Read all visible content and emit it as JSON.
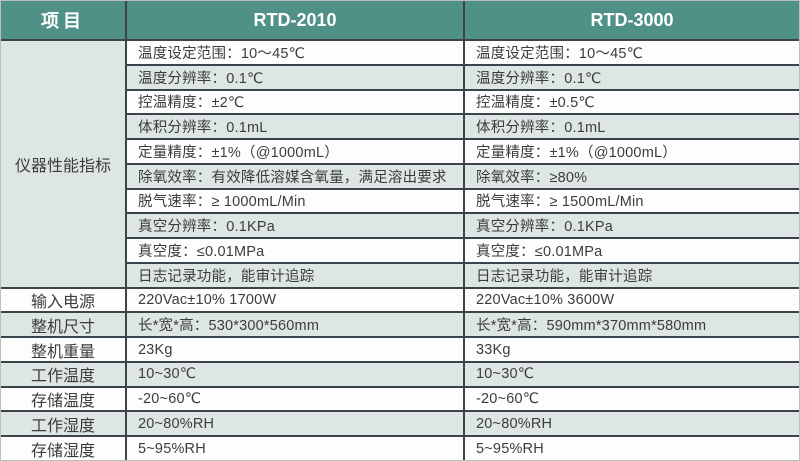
{
  "table": {
    "header": {
      "item": "项目",
      "product1": "RTD-2010",
      "product2": "RTD-3000"
    },
    "performance_label": "仪器性能指标",
    "performance_rows": [
      {
        "rtd2010": "温度设定范围：10～45℃",
        "rtd3000": "温度设定范围：10～45℃"
      },
      {
        "rtd2010": "温度分辨率：0.1℃",
        "rtd3000": "温度分辨率：0.1℃"
      },
      {
        "rtd2010": "控温精度：±2℃",
        "rtd3000": "控温精度：±0.5℃"
      },
      {
        "rtd2010": "体积分辨率：0.1mL",
        "rtd3000": "体积分辨率：0.1mL"
      },
      {
        "rtd2010": "定量精度：±1%（@1000mL）",
        "rtd3000": "定量精度：±1%（@1000mL）"
      },
      {
        "rtd2010": "除氧效率：有效降低溶媒含氧量，满足溶出要求",
        "rtd3000": "除氧效率：≥80%"
      },
      {
        "rtd2010": "脱气速率：≥ 1000mL/Min",
        "rtd3000": "脱气速率：≥ 1500mL/Min"
      },
      {
        "rtd2010": "真空分辨率：0.1KPa",
        "rtd3000": "真空分辨率：0.1KPa"
      },
      {
        "rtd2010": "真空度：≤0.01MPa",
        "rtd3000": "真空度：≤0.01MPa"
      },
      {
        "rtd2010": "日志记录功能，能审计追踪",
        "rtd3000": "日志记录功能，能审计追踪"
      }
    ],
    "spec_rows": [
      {
        "label": "输入电源",
        "rtd2010": "220Vac±10% 1700W",
        "rtd3000": "220Vac±10% 3600W"
      },
      {
        "label": "整机尺寸",
        "rtd2010": "长*宽*高：530*300*560mm",
        "rtd3000": "长*宽*高：590mm*370mm*580mm"
      },
      {
        "label": "整机重量",
        "rtd2010": "23Kg",
        "rtd3000": "33Kg"
      },
      {
        "label": "工作温度",
        "rtd2010": "10~30℃",
        "rtd3000": "10~30℃"
      },
      {
        "label": "存储温度",
        "rtd2010": "-20~60℃",
        "rtd3000": "-20~60℃"
      },
      {
        "label": "工作湿度",
        "rtd2010": "20~80%RH",
        "rtd3000": "20~80%RH"
      },
      {
        "label": "存储湿度",
        "rtd2010": "5~95%RH",
        "rtd3000": "5~95%RH"
      }
    ]
  },
  "colors": {
    "header_teal": "#4f9186",
    "stripe_light": "#dde6e2",
    "row_white": "#fdfdfd",
    "grid_line": "#3c444b",
    "text": "#3a3d3f"
  }
}
